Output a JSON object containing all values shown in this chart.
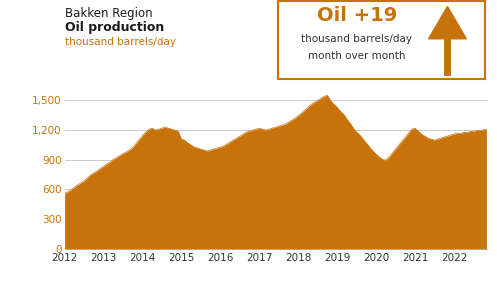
{
  "title_line1": "Bakken Region",
  "title_line2": "Oil production",
  "ylabel": "thousand barrels/day",
  "box_title": "Oil +19",
  "box_sub1": "thousand barrels/day",
  "box_sub2": "month over month",
  "area_color": "#C8720A",
  "title_color1": "#1a1a1a",
  "title_color2": "#1a1a1a",
  "ylabel_color": "#C8720A",
  "tick_color": "#C8720A",
  "box_border_color": "#C8720A",
  "grid_color": "#cccccc",
  "ylim": [
    0,
    1650
  ],
  "yticks": [
    0,
    300,
    600,
    900,
    1200,
    1500
  ],
  "xticks": [
    2012,
    2013,
    2014,
    2015,
    2016,
    2017,
    2018,
    2019,
    2020,
    2021,
    2022
  ],
  "values": [
    560,
    575,
    595,
    620,
    645,
    665,
    685,
    715,
    745,
    765,
    785,
    810,
    830,
    855,
    875,
    900,
    920,
    940,
    960,
    975,
    995,
    1020,
    1060,
    1100,
    1140,
    1175,
    1205,
    1215,
    1195,
    1205,
    1215,
    1225,
    1215,
    1205,
    1195,
    1185,
    1105,
    1095,
    1065,
    1045,
    1025,
    1015,
    1005,
    995,
    985,
    995,
    1005,
    1015,
    1025,
    1035,
    1055,
    1075,
    1095,
    1115,
    1135,
    1155,
    1175,
    1185,
    1195,
    1205,
    1215,
    1205,
    1195,
    1205,
    1215,
    1225,
    1235,
    1245,
    1255,
    1275,
    1295,
    1315,
    1340,
    1365,
    1395,
    1425,
    1455,
    1475,
    1495,
    1515,
    1535,
    1545,
    1490,
    1455,
    1425,
    1385,
    1355,
    1305,
    1265,
    1215,
    1175,
    1145,
    1105,
    1065,
    1025,
    985,
    955,
    925,
    900,
    895,
    925,
    965,
    1005,
    1045,
    1085,
    1125,
    1165,
    1205,
    1215,
    1185,
    1155,
    1135,
    1115,
    1105,
    1095,
    1105,
    1115,
    1125,
    1135,
    1145,
    1155,
    1165,
    1162,
    1172,
    1172,
    1182,
    1182,
    1192,
    1192,
    1197,
    1202
  ]
}
